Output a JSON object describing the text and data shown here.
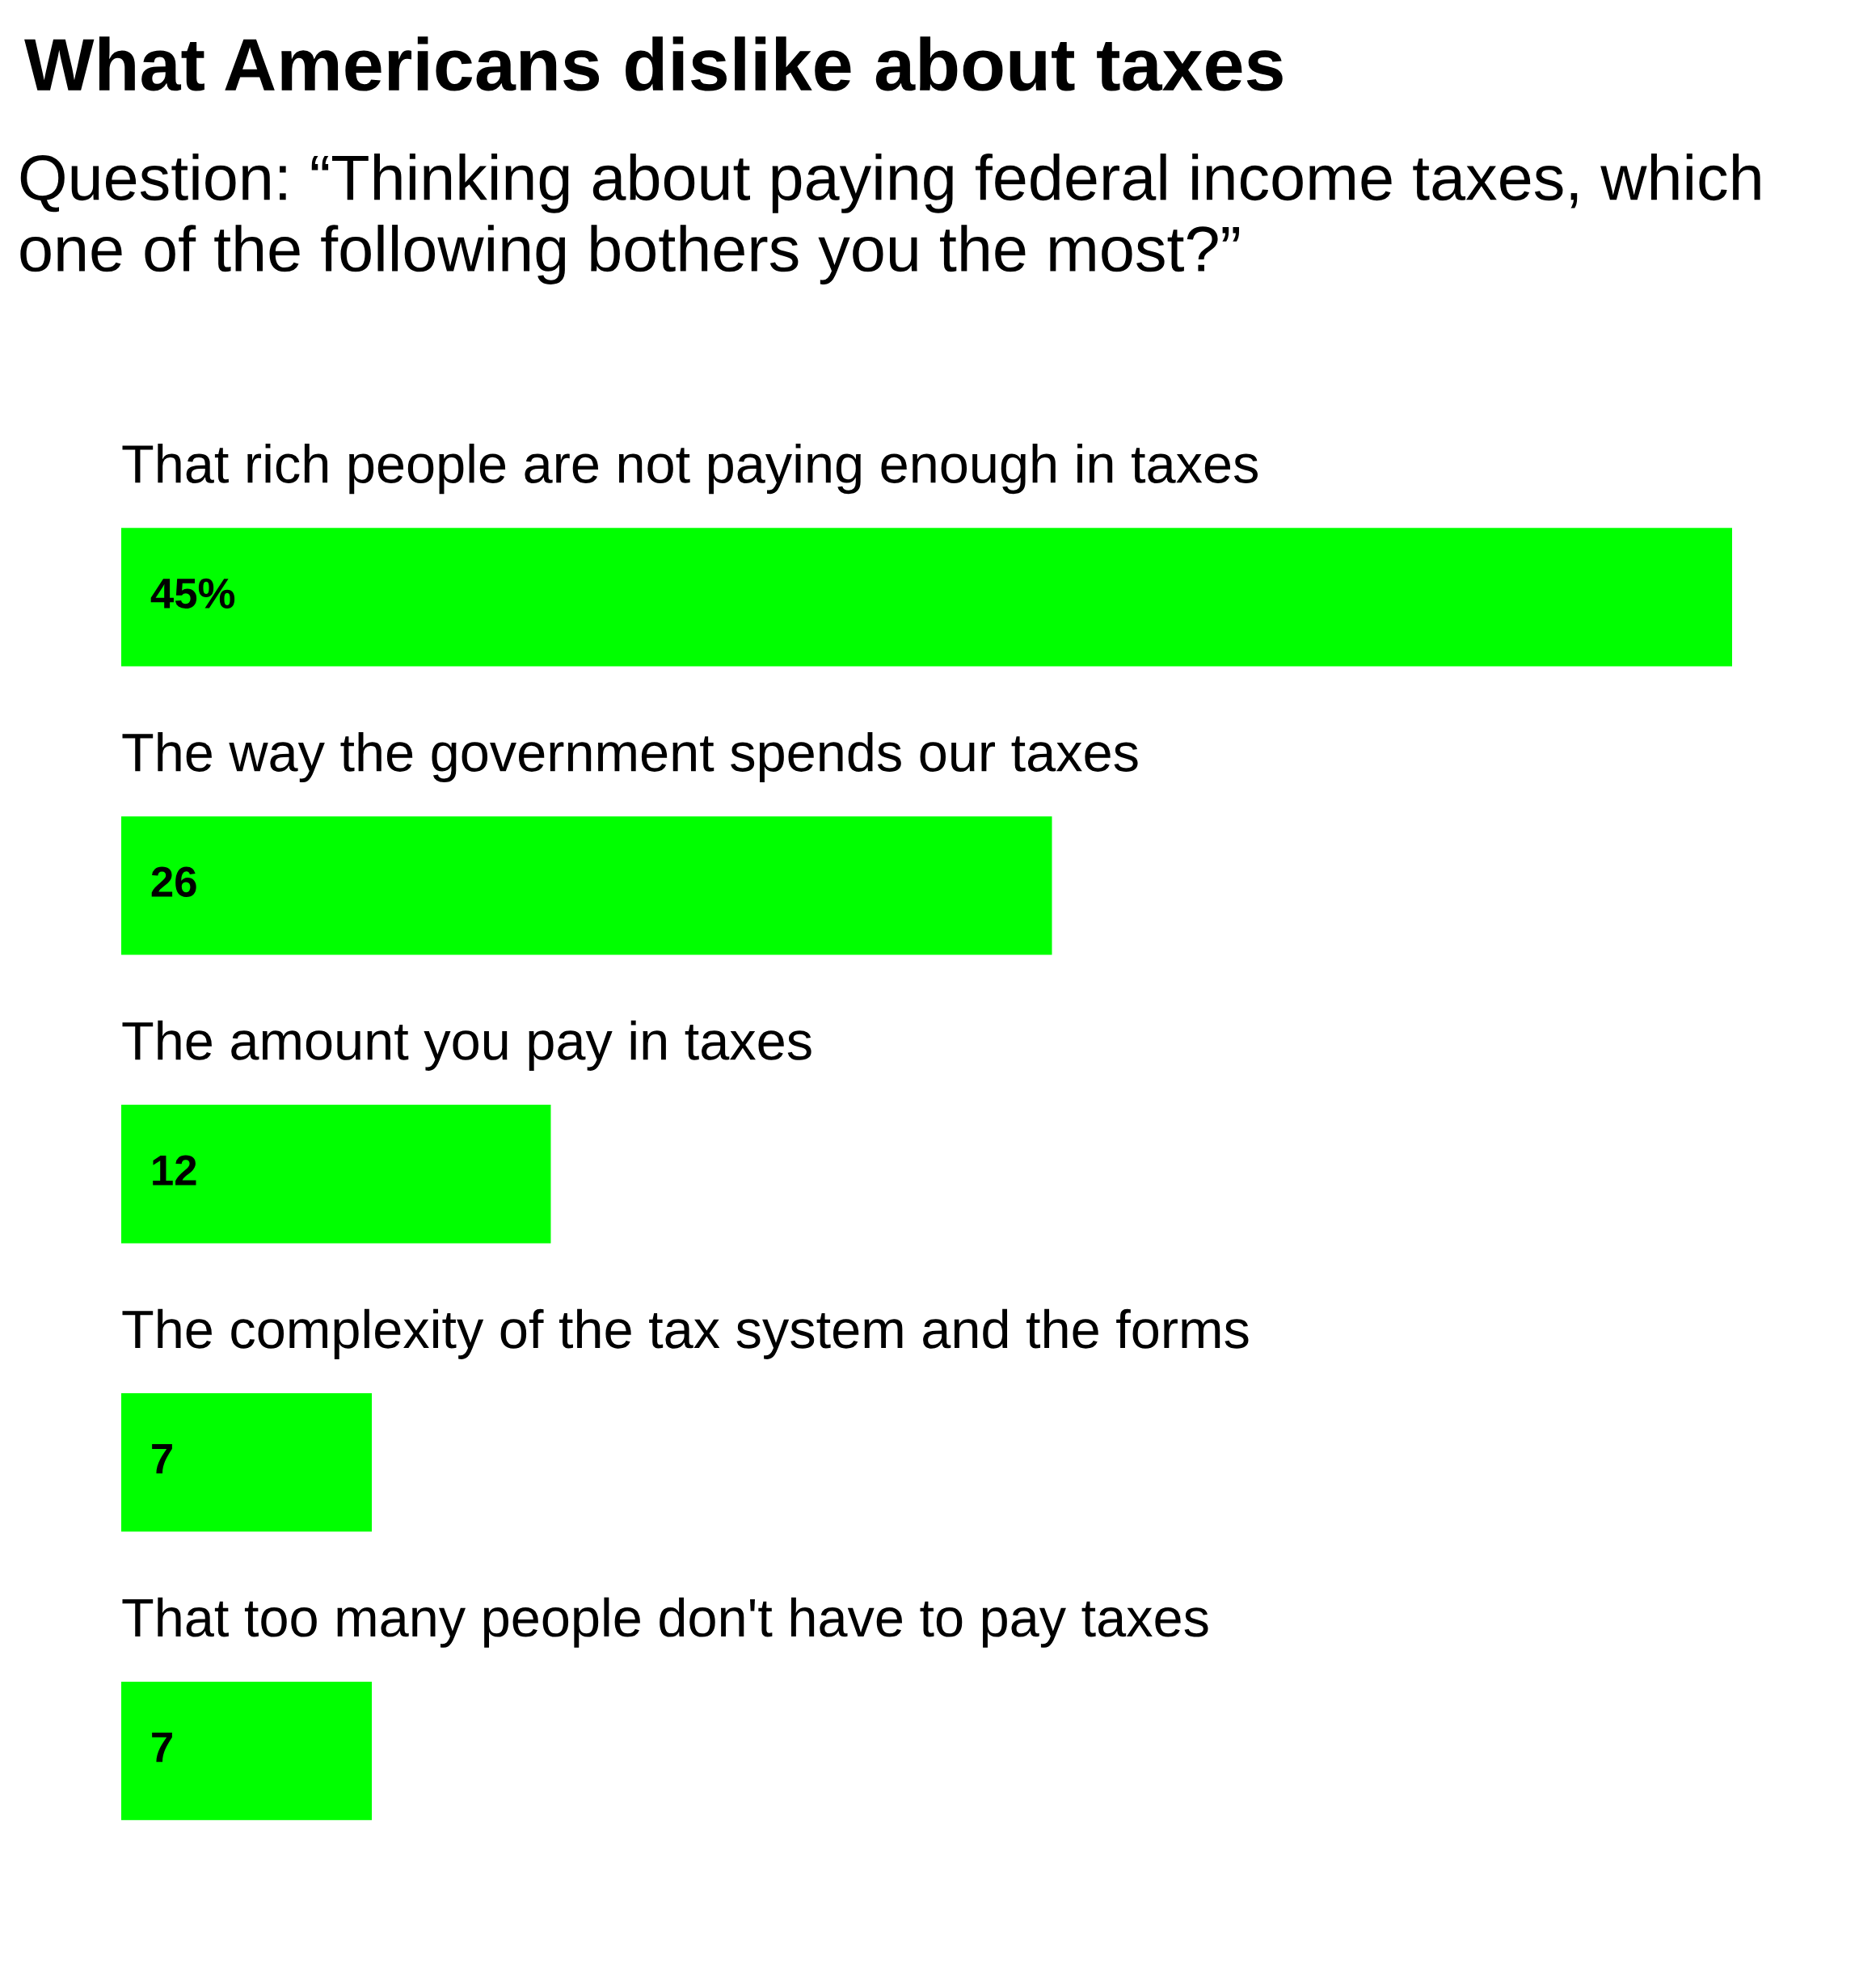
{
  "chart_data": {
    "type": "bar",
    "orientation": "horizontal",
    "title": "What Americans dislike about taxes",
    "subtitle": "Question: “Thinking about paying federal income taxes, which one of the following bothers you the most?”",
    "categories": [
      "That rich people are not paying enough in taxes",
      "The way the government spends our taxes",
      "The amount you pay in taxes",
      "The complexity of the tax system and the forms",
      "That too many people don't have to pay taxes"
    ],
    "values": [
      45,
      26,
      12,
      7,
      7
    ],
    "value_labels": [
      "45%",
      "26",
      "12",
      "7",
      "7"
    ],
    "color": "#00ff00"
  }
}
